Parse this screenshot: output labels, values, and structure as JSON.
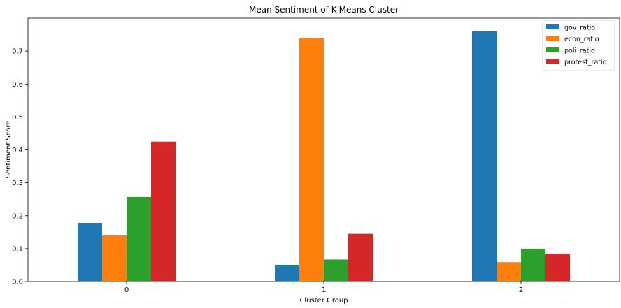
{
  "chart_data": {
    "type": "bar",
    "title": "Mean Sentiment of K-Means Cluster",
    "xlabel": "Cluster Group",
    "ylabel": "Sentiment Score",
    "categories": [
      "0",
      "1",
      "2"
    ],
    "series": [
      {
        "name": "gov_ratio",
        "color": "#1f77b4",
        "values": [
          0.178,
          0.051,
          0.76
        ]
      },
      {
        "name": "econ_ratio",
        "color": "#ff7f0e",
        "values": [
          0.14,
          0.739,
          0.059
        ]
      },
      {
        "name": "poli_ratio",
        "color": "#2ca02c",
        "values": [
          0.257,
          0.067,
          0.1
        ]
      },
      {
        "name": "protest_ratio",
        "color": "#d62728",
        "values": [
          0.425,
          0.145,
          0.084
        ]
      }
    ],
    "ylim": [
      0,
      0.8
    ],
    "yticks": [
      "0.0",
      "0.1",
      "0.2",
      "0.3",
      "0.4",
      "0.5",
      "0.6",
      "0.7"
    ],
    "grid": false,
    "legend_position": "top-right"
  }
}
